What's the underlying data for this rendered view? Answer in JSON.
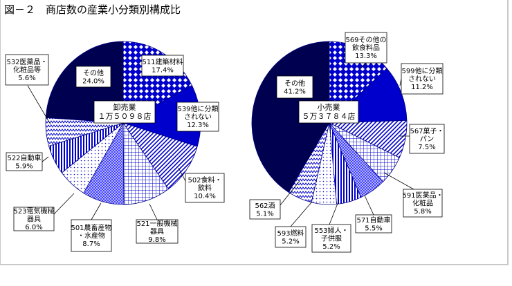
{
  "title": "図－２　商店数の産業小分類別構成比",
  "chart_data": [
    {
      "type": "pie",
      "center_label": [
        "卸売業",
        "１万５０９８店"
      ],
      "slices": [
        {
          "code": "511",
          "label": [
            "511建築材料",
            "17.4%"
          ],
          "value": 17.4,
          "pattern": "diamond"
        },
        {
          "code": "539",
          "label": [
            "539他に分類",
            "されない",
            "12.3%"
          ],
          "value": 12.3,
          "pattern": "solid-blue"
        },
        {
          "code": "502",
          "label": [
            "502食料・",
            "飲料",
            "10.4%"
          ],
          "value": 10.4,
          "pattern": "diag-blue"
        },
        {
          "code": "521",
          "label": [
            "521一般機械",
            "器具",
            "9.8%"
          ],
          "value": 9.8,
          "pattern": "grid"
        },
        {
          "code": "501",
          "label": [
            "501農畜産物",
            "・水産物",
            "8.7%"
          ],
          "value": 8.7,
          "pattern": "cross-blue"
        },
        {
          "code": "523",
          "label": [
            "523電気機械",
            "器具",
            "6.0%"
          ],
          "value": 6.0,
          "pattern": "dots"
        },
        {
          "code": "522",
          "label": [
            "522自動車",
            "5.9%"
          ],
          "value": 5.9,
          "pattern": "vstripe"
        },
        {
          "code": "532",
          "label": [
            "532医薬品・",
            "化粧品等",
            "5.6%"
          ],
          "value": 5.6,
          "pattern": "zigzag"
        },
        {
          "code": "other",
          "label": [
            "その他",
            "24.0%"
          ],
          "value": 24.0,
          "pattern": "navy"
        }
      ]
    },
    {
      "type": "pie",
      "center_label": [
        "小売業",
        "５万３７８４店"
      ],
      "slices": [
        {
          "code": "569",
          "label": [
            "569その他の",
            "飲食料品",
            "13.3%"
          ],
          "value": 13.3,
          "pattern": "diamond"
        },
        {
          "code": "599",
          "label": [
            "599他に分類",
            "されない",
            "11.2%"
          ],
          "value": 11.2,
          "pattern": "solid-blue"
        },
        {
          "code": "567",
          "label": [
            "567菓子・",
            "パン",
            "7.5%"
          ],
          "value": 7.5,
          "pattern": "diag-blue"
        },
        {
          "code": "591",
          "label": [
            "591医薬品・",
            "化粧品",
            "5.8%"
          ],
          "value": 5.8,
          "pattern": "grid"
        },
        {
          "code": "571",
          "label": [
            "571自動車",
            "5.5%"
          ],
          "value": 5.5,
          "pattern": "cross-blue"
        },
        {
          "code": "553",
          "label": [
            "553婦人・",
            "子供服",
            "5.2%"
          ],
          "value": 5.2,
          "pattern": "vstripe"
        },
        {
          "code": "593",
          "label": [
            "593燃料",
            "5.2%"
          ],
          "value": 5.2,
          "pattern": "dots"
        },
        {
          "code": "562",
          "label": [
            "562酒",
            "5.1%"
          ],
          "value": 5.1,
          "pattern": "zigzag"
        },
        {
          "code": "other",
          "label": [
            "その他",
            "41.2%"
          ],
          "value": 41.2,
          "pattern": "navy"
        }
      ]
    }
  ],
  "colors": {
    "navy": "#000050",
    "blue": "#0000cc",
    "fill_light": "#ffffff"
  }
}
